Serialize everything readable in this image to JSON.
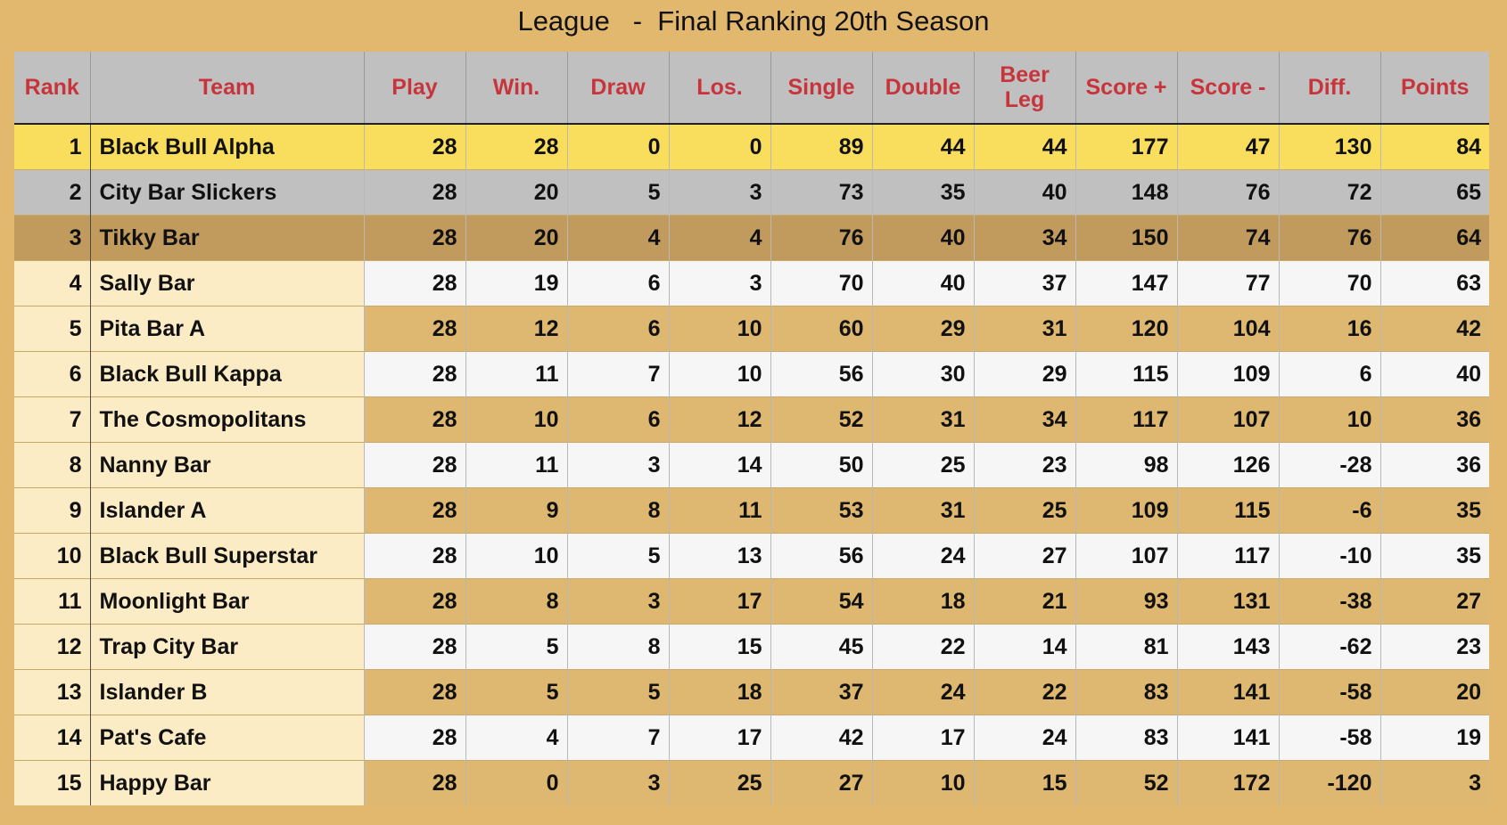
{
  "title": "League   -  Final Ranking 20th Season",
  "columns": {
    "rank": "Rank",
    "team": "Team",
    "play": "Play",
    "win": "Win.",
    "draw": "Draw",
    "loss": "Los.",
    "single": "Single",
    "double": "Double",
    "beer_leg": "Beer Leg",
    "score_plus": "Score +",
    "score_minus": "Score -",
    "diff": "Diff.",
    "points": "Points"
  },
  "rows": [
    {
      "rank": "1",
      "team": "Black Bull Alpha",
      "play": "28",
      "win": "28",
      "draw": "0",
      "loss": "0",
      "single": "89",
      "double": "44",
      "beer_leg": "44",
      "score_plus": "177",
      "score_minus": "47",
      "diff": "130",
      "points": "84"
    },
    {
      "rank": "2",
      "team": "City Bar Slickers",
      "play": "28",
      "win": "20",
      "draw": "5",
      "loss": "3",
      "single": "73",
      "double": "35",
      "beer_leg": "40",
      "score_plus": "148",
      "score_minus": "76",
      "diff": "72",
      "points": "65"
    },
    {
      "rank": "3",
      "team": "Tikky Bar",
      "play": "28",
      "win": "20",
      "draw": "4",
      "loss": "4",
      "single": "76",
      "double": "40",
      "beer_leg": "34",
      "score_plus": "150",
      "score_minus": "74",
      "diff": "76",
      "points": "64"
    },
    {
      "rank": "4",
      "team": "Sally Bar",
      "play": "28",
      "win": "19",
      "draw": "6",
      "loss": "3",
      "single": "70",
      "double": "40",
      "beer_leg": "37",
      "score_plus": "147",
      "score_minus": "77",
      "diff": "70",
      "points": "63"
    },
    {
      "rank": "5",
      "team": "Pita Bar A",
      "play": "28",
      "win": "12",
      "draw": "6",
      "loss": "10",
      "single": "60",
      "double": "29",
      "beer_leg": "31",
      "score_plus": "120",
      "score_minus": "104",
      "diff": "16",
      "points": "42"
    },
    {
      "rank": "6",
      "team": "Black Bull Kappa",
      "play": "28",
      "win": "11",
      "draw": "7",
      "loss": "10",
      "single": "56",
      "double": "30",
      "beer_leg": "29",
      "score_plus": "115",
      "score_minus": "109",
      "diff": "6",
      "points": "40"
    },
    {
      "rank": "7",
      "team": "The Cosmopolitans",
      "play": "28",
      "win": "10",
      "draw": "6",
      "loss": "12",
      "single": "52",
      "double": "31",
      "beer_leg": "34",
      "score_plus": "117",
      "score_minus": "107",
      "diff": "10",
      "points": "36"
    },
    {
      "rank": "8",
      "team": "Nanny Bar",
      "play": "28",
      "win": "11",
      "draw": "3",
      "loss": "14",
      "single": "50",
      "double": "25",
      "beer_leg": "23",
      "score_plus": "98",
      "score_minus": "126",
      "diff": "-28",
      "points": "36"
    },
    {
      "rank": "9",
      "team": "Islander A",
      "play": "28",
      "win": "9",
      "draw": "8",
      "loss": "11",
      "single": "53",
      "double": "31",
      "beer_leg": "25",
      "score_plus": "109",
      "score_minus": "115",
      "diff": "-6",
      "points": "35"
    },
    {
      "rank": "10",
      "team": "Black Bull Superstar",
      "play": "28",
      "win": "10",
      "draw": "5",
      "loss": "13",
      "single": "56",
      "double": "24",
      "beer_leg": "27",
      "score_plus": "107",
      "score_minus": "117",
      "diff": "-10",
      "points": "35"
    },
    {
      "rank": "11",
      "team": "Moonlight Bar",
      "play": "28",
      "win": "8",
      "draw": "3",
      "loss": "17",
      "single": "54",
      "double": "18",
      "beer_leg": "21",
      "score_plus": "93",
      "score_minus": "131",
      "diff": "-38",
      "points": "27"
    },
    {
      "rank": "12",
      "team": "Trap City Bar",
      "play": "28",
      "win": "5",
      "draw": "8",
      "loss": "15",
      "single": "45",
      "double": "22",
      "beer_leg": "14",
      "score_plus": "81",
      "score_minus": "143",
      "diff": "-62",
      "points": "23"
    },
    {
      "rank": "13",
      "team": "Islander B",
      "play": "28",
      "win": "5",
      "draw": "5",
      "loss": "18",
      "single": "37",
      "double": "24",
      "beer_leg": "22",
      "score_plus": "83",
      "score_minus": "141",
      "diff": "-58",
      "points": "20"
    },
    {
      "rank": "14",
      "team": "Pat's Cafe",
      "play": "28",
      "win": "4",
      "draw": "7",
      "loss": "17",
      "single": "42",
      "double": "17",
      "beer_leg": "24",
      "score_plus": "83",
      "score_minus": "141",
      "diff": "-58",
      "points": "19"
    },
    {
      "rank": "15",
      "team": "Happy Bar",
      "play": "28",
      "win": "0",
      "draw": "3",
      "loss": "25",
      "single": "27",
      "double": "10",
      "beer_leg": "15",
      "score_plus": "52",
      "score_minus": "172",
      "diff": "-120",
      "points": "3"
    }
  ],
  "colors": {
    "page_background": "#e2b86f",
    "header_background": "#c0c0c0",
    "header_text": "#c8343b",
    "gold_row": "#f9de5e",
    "silver_row": "#c0c0c0",
    "bronze_row": "#c19a5e",
    "name_cells": "#fcecc6",
    "light_row": "#f6f6f6",
    "dark_row": "#deb770"
  }
}
